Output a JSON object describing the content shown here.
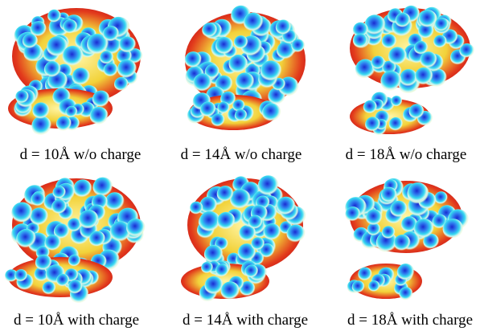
{
  "panels": [
    {
      "caption": "d = 10Å w/o charge"
    },
    {
      "caption": "d = 14Å w/o charge"
    },
    {
      "caption": "d = 18Å w/o charge"
    },
    {
      "caption": "d = 10Å with charge"
    },
    {
      "caption": "d = 14Å with charge"
    },
    {
      "caption": "d = 18Å with charge"
    }
  ]
}
